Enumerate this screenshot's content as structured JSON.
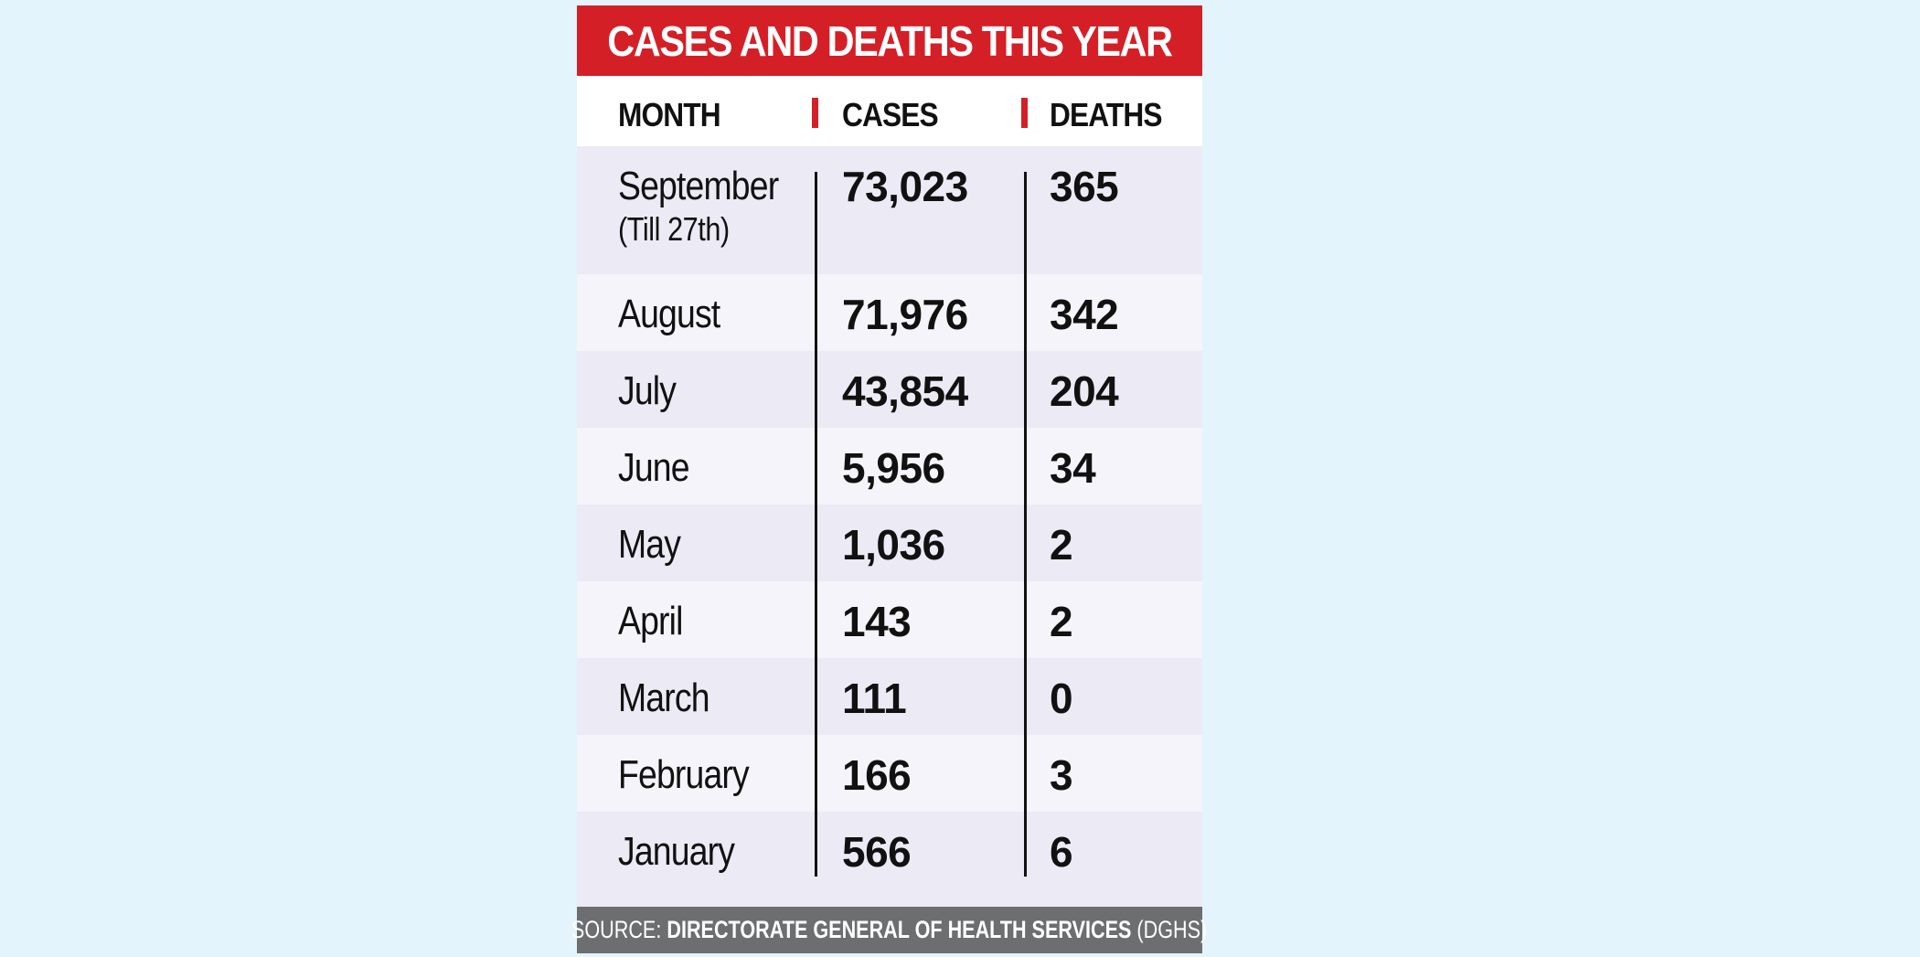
{
  "chart_data": {
    "type": "table",
    "title": "CASES AND DEATHS THIS YEAR",
    "columns": [
      "MONTH",
      "CASES",
      "DEATHS"
    ],
    "rows": [
      {
        "month": "September",
        "note": "(Till 27th)",
        "cases": "73,023",
        "deaths": "365"
      },
      {
        "month": "August",
        "note": "",
        "cases": "71,976",
        "deaths": "342"
      },
      {
        "month": "July",
        "note": "",
        "cases": "43,854",
        "deaths": "204"
      },
      {
        "month": "June",
        "note": "",
        "cases": "5,956",
        "deaths": "34"
      },
      {
        "month": "May",
        "note": "",
        "cases": "1,036",
        "deaths": "2"
      },
      {
        "month": "April",
        "note": "",
        "cases": "143",
        "deaths": "2"
      },
      {
        "month": "March",
        "note": "",
        "cases": "111",
        "deaths": "0"
      },
      {
        "month": "February",
        "note": "",
        "cases": "166",
        "deaths": "3"
      },
      {
        "month": "January",
        "note": "",
        "cases": "566",
        "deaths": "6"
      }
    ],
    "source_prefix": "SOURCE:",
    "source_name": "DIRECTORATE GENERAL OF HEALTH SERVICES",
    "source_suffix": "(DGHS)"
  },
  "colors": {
    "background": "#e4f4fc",
    "title_bar": "#d51f26",
    "accent_marker": "#d51f26",
    "row_odd": "#ebeaf5",
    "row_even": "#f4f4fa",
    "source_bar": "#6d6e70"
  }
}
